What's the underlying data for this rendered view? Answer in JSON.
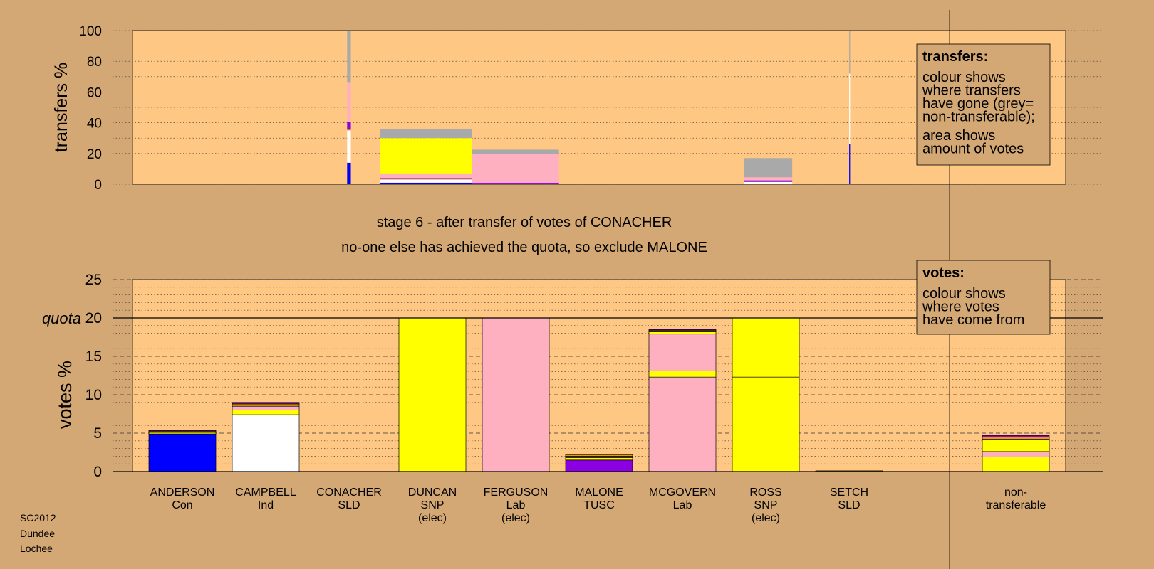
{
  "colors": {
    "background": "#D4A874",
    "plot_bg": "#FFC784",
    "Con": "#0000FF",
    "Ind": "#FFFFFF",
    "SNP": "#FFFF00",
    "Lab": "#FFB0C0",
    "TUSC": "#8B00E0",
    "SLD": "#E8A000",
    "nontransferable": "#A9A9A9"
  },
  "chart_data": [
    {
      "type": "bar",
      "stacked": true,
      "ylabel": "transfers %",
      "ylim": [
        0,
        100
      ],
      "yticks": [
        0,
        20,
        40,
        60,
        80,
        100
      ],
      "grid": "dotted every 10",
      "note": {
        "heading": "transfers:",
        "lines": [
          "colour shows",
          "where transfers",
          "have gone (grey=",
          "non-transferable);",
          "area shows",
          "amount of votes"
        ]
      },
      "bars": [
        {
          "name": "CONACHER",
          "start_pct": 23.0,
          "width_pct": 0.4,
          "segments": [
            {
              "party": "Con",
              "value": 14
            },
            {
              "party": "Ind",
              "value": 21
            },
            {
              "party": "SLD",
              "value": 0.5
            },
            {
              "party": "TUSC",
              "value": 5
            },
            {
              "party": "Lab",
              "value": 26
            },
            {
              "party": "nontransferable",
              "value": 33.5
            }
          ]
        },
        {
          "name": "DUNCAN",
          "start_pct": 26.5,
          "width_pct": 9.9,
          "segments": [
            {
              "party": "Con",
              "value": 1
            },
            {
              "party": "Ind",
              "value": 2
            },
            {
              "party": "SLD",
              "value": 0.5
            },
            {
              "party": "TUSC",
              "value": 0.5
            },
            {
              "party": "Lab",
              "value": 3
            },
            {
              "party": "SNP",
              "value": 23
            },
            {
              "party": "nontransferable",
              "value": 6
            }
          ]
        },
        {
          "name": "FERGUSON",
          "start_pct": 36.4,
          "width_pct": 9.3,
          "segments": [
            {
              "party": "Con",
              "value": 0.5
            },
            {
              "party": "TUSC",
              "value": 0.5
            },
            {
              "party": "Lab",
              "value": 18.5
            },
            {
              "party": "nontransferable",
              "value": 3
            }
          ]
        },
        {
          "name": "ROSS",
          "start_pct": 65.5,
          "width_pct": 5.2,
          "segments": [
            {
              "party": "Ind",
              "value": 1.5
            },
            {
              "party": "TUSC",
              "value": 1
            },
            {
              "party": "Lab",
              "value": 2
            },
            {
              "party": "nontransferable",
              "value": 12.5
            }
          ]
        },
        {
          "name": "SETCH",
          "start_pct": 76.8,
          "width_pct": 0.1,
          "segments": [
            {
              "party": "Con",
              "value": 26
            },
            {
              "party": "Ind",
              "value": 46
            },
            {
              "party": "nontransferable",
              "value": 28
            }
          ]
        }
      ]
    },
    {
      "type": "bar",
      "stacked": true,
      "ylabel": "votes %",
      "ylim": [
        0,
        25
      ],
      "yticks": [
        0,
        5,
        10,
        15,
        20,
        25
      ],
      "quota": 20,
      "quota_label": "quota",
      "note": {
        "heading": "votes:",
        "lines": [
          "colour shows",
          "where votes",
          "have come from"
        ]
      },
      "categories": [
        {
          "name": "ANDERSON",
          "party": "Con",
          "elected": ""
        },
        {
          "name": "CAMPBELL",
          "party": "Ind",
          "elected": ""
        },
        {
          "name": "CONACHER",
          "party": "SLD",
          "elected": ""
        },
        {
          "name": "DUNCAN",
          "party": "SNP",
          "elected": "(elec)"
        },
        {
          "name": "FERGUSON",
          "party": "Lab",
          "elected": "(elec)"
        },
        {
          "name": "MALONE",
          "party": "TUSC",
          "elected": ""
        },
        {
          "name": "MCGOVERN",
          "party": "Lab",
          "elected": ""
        },
        {
          "name": "ROSS",
          "party": "SNP",
          "elected": "(elec)"
        },
        {
          "name": "SETCH",
          "party": "SLD",
          "elected": ""
        },
        {
          "name": "non-",
          "party": "transferable",
          "elected": ""
        }
      ],
      "stacks": [
        [
          {
            "party": "Con",
            "value": 4.9
          },
          {
            "party": "SNP",
            "value": 0.2
          },
          {
            "party": "Lab",
            "value": 0.1
          },
          {
            "party": "SLD",
            "value": 0.1
          },
          {
            "party": "TUSC",
            "value": 0.1
          }
        ],
        [
          {
            "party": "Ind",
            "value": 7.4
          },
          {
            "party": "SNP",
            "value": 0.6
          },
          {
            "party": "Lab",
            "value": 0.5
          },
          {
            "party": "SLD",
            "value": 0.3
          },
          {
            "party": "TUSC",
            "value": 0.2
          }
        ],
        [],
        [
          {
            "party": "SNP",
            "value": 20
          }
        ],
        [
          {
            "party": "Lab",
            "value": 20
          }
        ],
        [
          {
            "party": "TUSC",
            "value": 1.5
          },
          {
            "party": "SNP",
            "value": 0.3
          },
          {
            "party": "Lab",
            "value": 0.2
          },
          {
            "party": "SLD",
            "value": 0.2
          }
        ],
        [
          {
            "party": "Lab",
            "value": 12.3
          },
          {
            "party": "SNP",
            "value": 0.8
          },
          {
            "party": "Lab",
            "value": 4.8
          },
          {
            "party": "SNP",
            "value": 0.3
          },
          {
            "party": "SLD",
            "value": 0.2
          },
          {
            "party": "TUSC",
            "value": 0.1
          }
        ],
        [
          {
            "party": "SNP",
            "value": 12.3
          },
          {
            "party": "SNP",
            "value": 7.7
          }
        ],
        [
          {
            "party": "SLD",
            "value": 0.1
          }
        ],
        [
          {
            "party": "SNP",
            "value": 1.9
          },
          {
            "party": "Lab",
            "value": 0.7
          },
          {
            "party": "SNP",
            "value": 1.6
          },
          {
            "party": "SLD",
            "value": 0.3
          },
          {
            "party": "TUSC",
            "value": 0.2
          }
        ]
      ]
    }
  ],
  "stage_title": "stage 6 - after transfer of votes of CONACHER",
  "stage_subtitle": "no-one else has achieved the quota, so exclude MALONE",
  "footer": [
    "SC2012",
    "Dundee",
    "Lochee"
  ]
}
